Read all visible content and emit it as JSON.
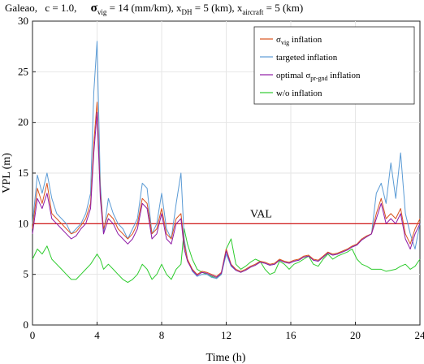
{
  "chart_data": {
    "type": "line",
    "title": {
      "location": "Galeao,",
      "c_part": "c = 1.0,",
      "sigma_sub": "vig",
      "sigma_val": " = 14 (mm/km), x",
      "x_sub1": "DH",
      "x_val1": " = 5 (km),  x",
      "x_sub2": "aircraft",
      "x_val2": " = 5 (km)"
    },
    "xlabel": "Time (h)",
    "ylabel": "VPL (m)",
    "xlim": [
      0,
      24
    ],
    "ylim": [
      0,
      30
    ],
    "xticks": [
      "0",
      "4",
      "8",
      "12",
      "16",
      "20",
      "24"
    ],
    "yticks": [
      "0",
      "5",
      "10",
      "15",
      "20",
      "25",
      "30"
    ],
    "grid": true,
    "legend_position": "top-right",
    "val_line": {
      "label": "VAL",
      "value": 10,
      "color": "#cc0000"
    },
    "series": [
      {
        "key": "sigma_vig",
        "legend_pre": "σ",
        "legend_sub": "vig",
        "legend_post": " inflation",
        "color": "#d9531e",
        "x": [
          0,
          0.3,
          0.6,
          0.9,
          1.2,
          1.5,
          1.8,
          2.1,
          2.4,
          2.7,
          3.0,
          3.3,
          3.6,
          3.8,
          4.0,
          4.2,
          4.4,
          4.7,
          5.0,
          5.3,
          5.6,
          5.9,
          6.2,
          6.5,
          6.8,
          7.1,
          7.4,
          7.7,
          8.0,
          8.3,
          8.6,
          8.9,
          9.2,
          9.4,
          9.6,
          9.9,
          10.2,
          10.5,
          10.8,
          11.1,
          11.4,
          11.7,
          12.0,
          12.3,
          12.6,
          12.9,
          13.2,
          13.5,
          13.8,
          14.1,
          14.4,
          14.7,
          15.0,
          15.3,
          15.6,
          15.9,
          16.2,
          16.5,
          16.8,
          17.1,
          17.4,
          17.7,
          18.0,
          18.3,
          18.6,
          18.9,
          19.2,
          19.5,
          19.8,
          20.1,
          20.4,
          20.7,
          21.0,
          21.3,
          21.6,
          21.9,
          22.2,
          22.5,
          22.8,
          23.1,
          23.4,
          23.7,
          24.0
        ],
        "y": [
          9.5,
          13.5,
          12.0,
          14.0,
          11.0,
          10.5,
          10.0,
          9.5,
          9.0,
          9.2,
          9.8,
          10.5,
          12.0,
          18.0,
          22.0,
          13.0,
          9.5,
          11.0,
          10.5,
          9.5,
          9.0,
          8.5,
          9.0,
          10.0,
          12.5,
          12.0,
          9.0,
          9.5,
          11.5,
          9.0,
          8.5,
          10.5,
          11.0,
          8.0,
          6.5,
          5.5,
          5.0,
          5.3,
          5.2,
          5.0,
          4.8,
          5.2,
          7.5,
          6.0,
          5.5,
          5.3,
          5.5,
          5.8,
          6.0,
          6.3,
          6.2,
          6.0,
          6.1,
          6.5,
          6.3,
          6.2,
          6.4,
          6.5,
          6.8,
          6.9,
          6.5,
          6.4,
          6.8,
          7.2,
          7.0,
          7.1,
          7.3,
          7.5,
          7.8,
          8.0,
          8.5,
          8.8,
          9.0,
          11.0,
          12.5,
          10.5,
          11.0,
          10.5,
          11.5,
          9.0,
          8.0,
          9.5,
          10.5
        ]
      },
      {
        "key": "targeted",
        "legend_pre": "targeted inflation",
        "legend_sub": "",
        "legend_post": "",
        "color": "#5b9bd5",
        "x": [
          0,
          0.3,
          0.6,
          0.9,
          1.2,
          1.5,
          1.8,
          2.1,
          2.4,
          2.7,
          3.0,
          3.3,
          3.6,
          3.8,
          4.0,
          4.2,
          4.4,
          4.7,
          5.0,
          5.3,
          5.6,
          5.9,
          6.2,
          6.5,
          6.8,
          7.1,
          7.4,
          7.7,
          8.0,
          8.3,
          8.6,
          8.9,
          9.2,
          9.4,
          9.6,
          9.9,
          10.2,
          10.5,
          10.8,
          11.1,
          11.4,
          11.7,
          12.0,
          12.3,
          12.6,
          12.9,
          13.2,
          13.5,
          13.8,
          14.1,
          14.4,
          14.7,
          15.0,
          15.3,
          15.6,
          15.9,
          16.2,
          16.5,
          16.8,
          17.1,
          17.4,
          17.7,
          18.0,
          18.3,
          18.6,
          18.9,
          19.2,
          19.5,
          19.8,
          20.1,
          20.4,
          20.7,
          21.0,
          21.3,
          21.6,
          21.9,
          22.2,
          22.5,
          22.8,
          23.1,
          23.4,
          23.7,
          24.0
        ],
        "y": [
          10.0,
          14.8,
          13.0,
          15.0,
          12.5,
          11.0,
          10.5,
          10.0,
          9.0,
          9.5,
          10.0,
          11.0,
          13.0,
          23.0,
          28.0,
          14.0,
          9.0,
          12.5,
          11.0,
          10.0,
          9.5,
          8.5,
          9.5,
          10.5,
          14.0,
          13.5,
          9.0,
          10.0,
          13.0,
          9.5,
          8.5,
          12.0,
          15.0,
          8.5,
          6.5,
          5.3,
          4.8,
          5.0,
          5.0,
          4.7,
          4.6,
          5.0,
          7.0,
          5.8,
          5.4,
          5.2,
          5.4,
          5.7,
          5.9,
          6.2,
          6.1,
          5.9,
          6.0,
          6.4,
          6.2,
          6.1,
          6.3,
          6.4,
          6.7,
          6.8,
          6.4,
          6.3,
          6.7,
          7.1,
          6.9,
          7.0,
          7.2,
          7.4,
          7.7,
          7.9,
          8.4,
          8.7,
          9.0,
          13.0,
          14.0,
          12.0,
          16.0,
          12.5,
          17.0,
          11.0,
          9.0,
          7.5,
          10.0
        ]
      },
      {
        "key": "optimal",
        "legend_pre": "optimal  σ",
        "legend_sub": "pr-gnd",
        "legend_post": " inflation",
        "color": "#8e1aa5",
        "x": [
          0,
          0.3,
          0.6,
          0.9,
          1.2,
          1.5,
          1.8,
          2.1,
          2.4,
          2.7,
          3.0,
          3.3,
          3.6,
          3.8,
          4.0,
          4.2,
          4.4,
          4.7,
          5.0,
          5.3,
          5.6,
          5.9,
          6.2,
          6.5,
          6.8,
          7.1,
          7.4,
          7.7,
          8.0,
          8.3,
          8.6,
          8.9,
          9.2,
          9.4,
          9.6,
          9.9,
          10.2,
          10.5,
          10.8,
          11.1,
          11.4,
          11.7,
          12.0,
          12.3,
          12.6,
          12.9,
          13.2,
          13.5,
          13.8,
          14.1,
          14.4,
          14.7,
          15.0,
          15.3,
          15.6,
          15.9,
          16.2,
          16.5,
          16.8,
          17.1,
          17.4,
          17.7,
          18.0,
          18.3,
          18.6,
          18.9,
          19.2,
          19.5,
          19.8,
          20.1,
          20.4,
          20.7,
          21.0,
          21.3,
          21.6,
          21.9,
          22.2,
          22.5,
          22.8,
          23.1,
          23.4,
          23.7,
          24.0
        ],
        "y": [
          9.0,
          12.5,
          11.5,
          13.0,
          10.5,
          10.0,
          9.5,
          9.0,
          8.5,
          8.8,
          9.5,
          10.0,
          11.5,
          17.0,
          21.0,
          12.5,
          9.0,
          10.5,
          10.0,
          9.0,
          8.5,
          8.0,
          8.5,
          9.5,
          12.0,
          11.5,
          8.5,
          9.0,
          11.0,
          8.5,
          8.0,
          10.0,
          10.5,
          7.5,
          6.3,
          5.4,
          4.9,
          5.2,
          5.1,
          4.9,
          4.7,
          5.1,
          7.3,
          5.9,
          5.4,
          5.2,
          5.4,
          5.7,
          5.9,
          6.2,
          6.1,
          5.9,
          6.0,
          6.4,
          6.2,
          6.1,
          6.3,
          6.4,
          6.7,
          6.8,
          6.4,
          6.3,
          6.7,
          7.1,
          6.9,
          7.0,
          7.2,
          7.4,
          7.7,
          7.9,
          8.4,
          8.7,
          9.0,
          10.5,
          12.0,
          10.0,
          10.5,
          10.0,
          11.0,
          8.5,
          7.5,
          9.0,
          10.0
        ]
      },
      {
        "key": "wo",
        "legend_pre": "w/o inflation",
        "legend_sub": "",
        "legend_post": "",
        "color": "#2ecc2e",
        "x": [
          0,
          0.3,
          0.6,
          0.9,
          1.2,
          1.5,
          1.8,
          2.1,
          2.4,
          2.7,
          3.0,
          3.3,
          3.6,
          3.8,
          4.0,
          4.2,
          4.4,
          4.7,
          5.0,
          5.3,
          5.6,
          5.9,
          6.2,
          6.5,
          6.8,
          7.1,
          7.4,
          7.7,
          8.0,
          8.3,
          8.6,
          8.9,
          9.2,
          9.4,
          9.6,
          9.9,
          10.2,
          10.5,
          10.8,
          11.1,
          11.4,
          11.7,
          12.0,
          12.3,
          12.6,
          12.9,
          13.2,
          13.5,
          13.8,
          14.1,
          14.4,
          14.7,
          15.0,
          15.3,
          15.6,
          15.9,
          16.2,
          16.5,
          16.8,
          17.1,
          17.4,
          17.7,
          18.0,
          18.3,
          18.6,
          18.9,
          19.2,
          19.5,
          19.8,
          20.1,
          20.4,
          20.7,
          21.0,
          21.3,
          21.6,
          21.9,
          22.2,
          22.5,
          22.8,
          23.1,
          23.4,
          23.7,
          24.0
        ],
        "y": [
          6.5,
          7.5,
          7.0,
          7.8,
          6.5,
          6.0,
          5.5,
          5.0,
          4.5,
          4.5,
          5.0,
          5.5,
          6.0,
          6.5,
          7.0,
          6.5,
          5.5,
          6.0,
          5.5,
          5.0,
          4.5,
          4.2,
          4.5,
          5.0,
          6.0,
          5.5,
          4.5,
          5.0,
          6.0,
          5.0,
          4.5,
          5.5,
          6.0,
          9.5,
          8.0,
          6.5,
          5.5,
          5.2,
          5.0,
          4.8,
          4.6,
          5.0,
          7.5,
          8.5,
          6.0,
          5.5,
          5.8,
          6.2,
          6.5,
          6.3,
          5.5,
          5.0,
          5.2,
          6.3,
          6.0,
          5.5,
          6.0,
          6.2,
          6.5,
          6.8,
          6.0,
          5.8,
          6.5,
          7.0,
          6.5,
          6.8,
          7.0,
          7.2,
          7.5,
          6.5,
          6.0,
          5.8,
          5.5,
          5.5,
          5.5,
          5.3,
          5.4,
          5.5,
          5.8,
          6.0,
          5.5,
          5.8,
          6.5
        ]
      }
    ]
  }
}
